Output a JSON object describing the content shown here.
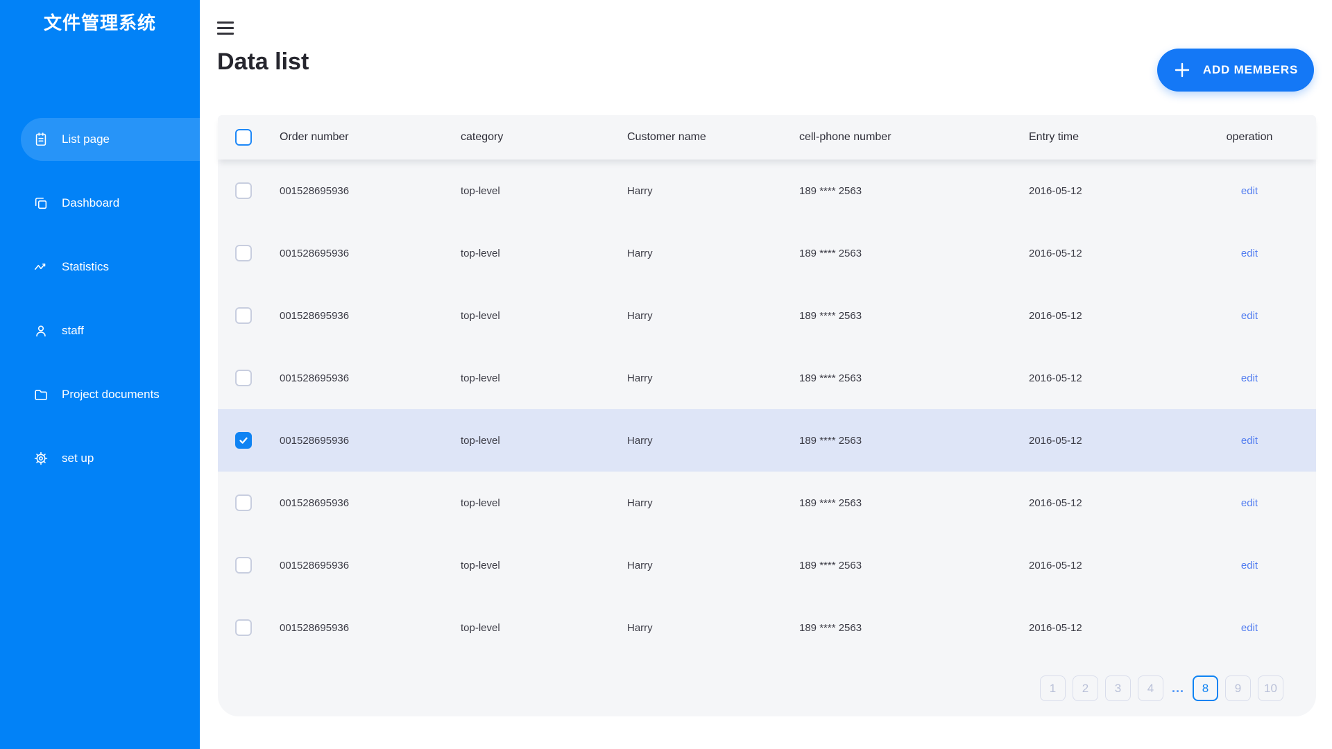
{
  "colors": {
    "sidebar_bg": "#0282f7",
    "active_item_bg": "#2595f8",
    "primary_button_bg": "#1478f6",
    "accent_blue": "#0f83f3",
    "selected_row_bg": "#dee5f7",
    "edit_link": "#527df0",
    "table_bg": "#f5f6f8"
  },
  "sidebar": {
    "title": "文件管理系统",
    "items": [
      {
        "label": "List page",
        "icon": "clipboard-icon",
        "active": true
      },
      {
        "label": "Dashboard",
        "icon": "dashboard-icon",
        "active": false
      },
      {
        "label": "Statistics",
        "icon": "statistics-icon",
        "active": false
      },
      {
        "label": "staff",
        "icon": "user-icon",
        "active": false
      },
      {
        "label": "Project documents",
        "icon": "folder-icon",
        "active": false
      },
      {
        "label": "set up",
        "icon": "gear-icon",
        "active": false
      }
    ]
  },
  "header": {
    "title": "Data list",
    "add_button_label": "ADD MEMBERS"
  },
  "table": {
    "columns": [
      "Order number",
      "category",
      "Customer name",
      "cell-phone number",
      "Entry time",
      "operation"
    ],
    "edit_label": "edit",
    "rows": [
      {
        "order": "001528695936",
        "category": "top-level",
        "customer": "Harry",
        "phone": "189 **** 2563",
        "entry": "2016-05-12",
        "selected": false
      },
      {
        "order": "001528695936",
        "category": "top-level",
        "customer": "Harry",
        "phone": "189 **** 2563",
        "entry": "2016-05-12",
        "selected": false
      },
      {
        "order": "001528695936",
        "category": "top-level",
        "customer": "Harry",
        "phone": "189 **** 2563",
        "entry": "2016-05-12",
        "selected": false
      },
      {
        "order": "001528695936",
        "category": "top-level",
        "customer": "Harry",
        "phone": "189 **** 2563",
        "entry": "2016-05-12",
        "selected": false
      },
      {
        "order": "001528695936",
        "category": "top-level",
        "customer": "Harry",
        "phone": "189 **** 2563",
        "entry": "2016-05-12",
        "selected": true
      },
      {
        "order": "001528695936",
        "category": "top-level",
        "customer": "Harry",
        "phone": "189 **** 2563",
        "entry": "2016-05-12",
        "selected": false
      },
      {
        "order": "001528695936",
        "category": "top-level",
        "customer": "Harry",
        "phone": "189 **** 2563",
        "entry": "2016-05-12",
        "selected": false
      },
      {
        "order": "001528695936",
        "category": "top-level",
        "customer": "Harry",
        "phone": "189 **** 2563",
        "entry": "2016-05-12",
        "selected": false
      }
    ]
  },
  "pagination": {
    "active_page": "8",
    "items": [
      {
        "label": "1",
        "type": "page"
      },
      {
        "label": "2",
        "type": "page"
      },
      {
        "label": "3",
        "type": "page"
      },
      {
        "label": "4",
        "type": "page"
      },
      {
        "label": "...",
        "type": "ellipsis"
      },
      {
        "label": "8",
        "type": "page"
      },
      {
        "label": "9",
        "type": "page"
      },
      {
        "label": "10",
        "type": "page"
      }
    ]
  }
}
